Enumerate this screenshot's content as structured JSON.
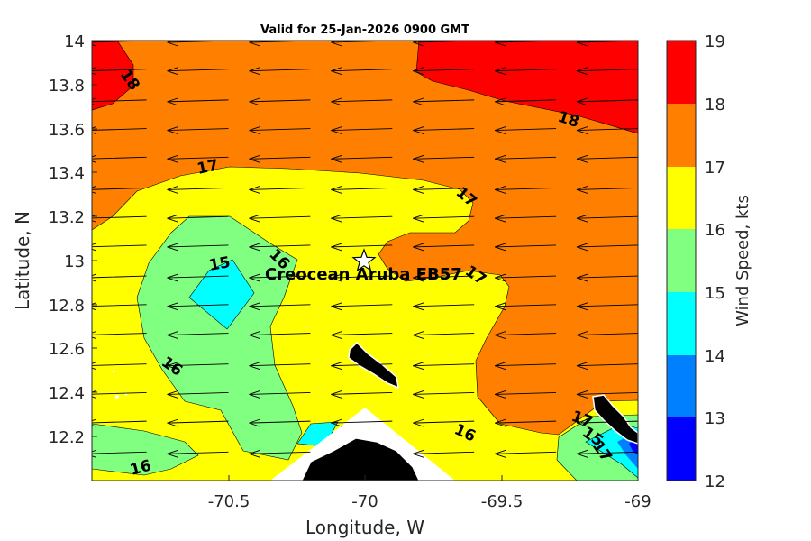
{
  "title": "Valid for 25-Jan-2026 0900 GMT",
  "xlabel": "Longitude, W",
  "ylabel": "Latitude, N",
  "colorbar_label": "Wind Speed, kts",
  "x_ticks": [
    "-70.5",
    "-70",
    "-69.5",
    "-69"
  ],
  "y_ticks": [
    "14",
    "13.8",
    "13.6",
    "13.4",
    "13.2",
    "13",
    "12.8",
    "12.6",
    "12.4",
    "12.2"
  ],
  "colorbar_ticks": [
    "19",
    "18",
    "17",
    "16",
    "15",
    "14",
    "13",
    "12"
  ],
  "station": {
    "name": "Creocean Aruba EB57",
    "lon": -70.0,
    "lat": 13.0,
    "marker": "star-icon"
  },
  "contour_labels": [
    "18",
    "18",
    "17",
    "17",
    "15",
    "16",
    "16",
    "16",
    "16",
    "17",
    "17",
    "15",
    "17"
  ],
  "colors": {
    "12-13": "#0000ff",
    "13-14": "#0080ff",
    "14-15": "#00ffff",
    "15-16": "#80ff80",
    "16-17": "#ffff00",
    "17-18": "#ff8000",
    "18-19": "#ff0000",
    "land": "#000000"
  },
  "chart_data": {
    "type": "heatmap",
    "title": "Valid for 25-Jan-2026 0900 GMT",
    "xlabel": "Longitude, W",
    "ylabel": "Latitude, N",
    "xlim": [
      -71.0,
      -69.0
    ],
    "ylim": [
      12.0,
      14.0
    ],
    "colorbar": {
      "label": "Wind Speed, kts",
      "range": [
        12,
        19
      ],
      "levels": [
        12,
        13,
        14,
        15,
        16,
        17,
        18,
        19
      ]
    },
    "wind_direction": "easterly (arrows point west)",
    "vector_rows_lat": [
      14.0,
      13.87,
      13.73,
      13.6,
      13.47,
      13.33,
      13.2,
      13.07,
      12.93,
      12.8,
      12.67,
      12.53,
      12.4,
      12.27,
      12.13
    ],
    "vector_cols_lon": [
      -70.8,
      -70.5,
      -70.2,
      -69.9,
      -69.6,
      -69.3,
      -69.0
    ],
    "contour_labels": [
      {
        "value": 18,
        "lon": -70.9,
        "lat": 13.84
      },
      {
        "value": 18,
        "lon": -69.27,
        "lat": 13.66
      },
      {
        "value": 17,
        "lon": -70.55,
        "lat": 13.41
      },
      {
        "value": 17,
        "lon": -69.6,
        "lat": 13.29
      },
      {
        "value": 15,
        "lon": -70.51,
        "lat": 12.98
      },
      {
        "value": 16,
        "lon": -70.31,
        "lat": 13.01
      },
      {
        "value": 16,
        "lon": -70.7,
        "lat": 12.52
      },
      {
        "value": 16,
        "lon": -69.6,
        "lat": 12.22
      },
      {
        "value": 16,
        "lon": -70.83,
        "lat": 12.06
      },
      {
        "value": 17,
        "lon": -69.55,
        "lat": 12.94
      },
      {
        "value": 17,
        "lon": -69.18,
        "lat": 12.27
      },
      {
        "value": 15,
        "lon": -69.15,
        "lat": 12.2
      },
      {
        "value": 17,
        "lon": -69.12,
        "lat": 12.15
      }
    ]
  }
}
